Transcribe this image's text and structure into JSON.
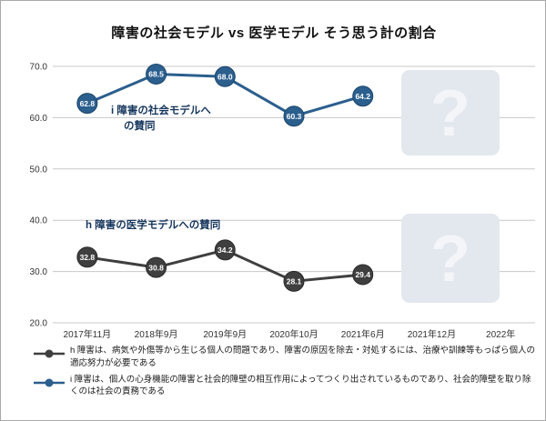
{
  "title": "障害の社会モデル vs 医学モデル  そう思う計の割合",
  "chart_data": {
    "type": "line",
    "categories": [
      "2017年11月",
      "2018年9月",
      "2019年9月",
      "2020年10月",
      "2021年6月",
      "2021年12月",
      "2022年"
    ],
    "series": [
      {
        "name": "h",
        "color": "#3f3f3f",
        "edge_color": "#2b2b2b",
        "values": [
          32.8,
          30.8,
          34.2,
          28.1,
          29.4,
          null,
          null
        ]
      },
      {
        "name": "i",
        "color": "#2b5f8e",
        "edge_color": "#1d4569",
        "values": [
          62.8,
          68.5,
          68.0,
          60.3,
          64.2,
          null,
          null
        ]
      }
    ],
    "ylim": [
      20,
      70
    ],
    "ytick_step": 10,
    "grid": true,
    "annotations": [
      {
        "text": "i 障害の社会モデルへ\nの賛同",
        "color": "#17375e"
      },
      {
        "text": "h 障害の医学モデルへの賛同",
        "color": "#17375e"
      }
    ],
    "placeholders": [
      {
        "glyph": "?"
      },
      {
        "glyph": "?"
      }
    ],
    "placeholder_bg": "#e3e8ee",
    "placeholder_fg": "#f3f5f9",
    "grid_color": "#c8c8c8",
    "tick_color": "#333333"
  },
  "legend": {
    "items": [
      {
        "series": "h",
        "text": "h 障害は、病気や外傷等から生じる個人の問題であり、障害の原因を除去・対処するには、治療や訓練等もっぱら個人の適応努力が必要である"
      },
      {
        "series": "i",
        "text": "i 障害は、個人の心身機能の障害と社会的障壁の相互作用によってつくり出されているものであり、社会的障壁を取り除くのは社会の責務である"
      }
    ]
  }
}
